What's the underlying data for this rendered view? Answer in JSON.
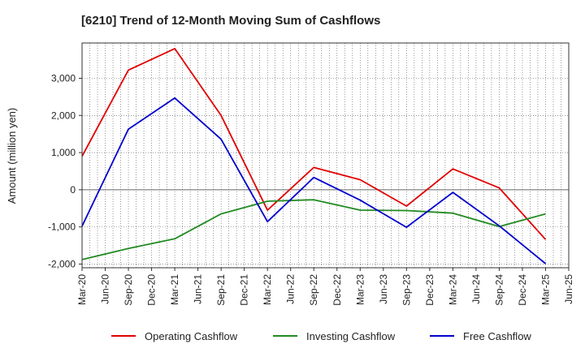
{
  "chart_data": {
    "type": "line",
    "title": "[6210]  Trend of 12-Month Moving Sum of Cashflows",
    "xlabel": "",
    "ylabel": "Amount (million yen)",
    "x_ticks": [
      "Mar-20",
      "Jun-20",
      "Sep-20",
      "Dec-20",
      "Mar-21",
      "Jun-21",
      "Sep-21",
      "Dec-21",
      "Mar-22",
      "Jun-22",
      "Sep-22",
      "Dec-22",
      "Mar-23",
      "Jun-23",
      "Sep-23",
      "Dec-23",
      "Mar-24",
      "Jun-24",
      "Sep-24",
      "Dec-24",
      "Mar-25",
      "Jun-25"
    ],
    "y_ticks": [
      -2000,
      -1000,
      0,
      1000,
      2000,
      3000
    ],
    "y_tick_labels": [
      "-2,000",
      "-1,000",
      "0",
      "1,000",
      "2,000",
      "3,000"
    ],
    "ylim": [
      -2100,
      3950
    ],
    "grid": true,
    "legend_position": "bottom",
    "series": [
      {
        "name": "Operating Cashflow",
        "color": "#e00000",
        "points": [
          {
            "x": "Mar-20",
            "y": 900
          },
          {
            "x": "Sep-20",
            "y": 3220
          },
          {
            "x": "Mar-21",
            "y": 3800
          },
          {
            "x": "Sep-21",
            "y": 2000
          },
          {
            "x": "Mar-22",
            "y": -550
          },
          {
            "x": "Sep-22",
            "y": 600
          },
          {
            "x": "Mar-23",
            "y": 270
          },
          {
            "x": "Sep-23",
            "y": -440
          },
          {
            "x": "Mar-24",
            "y": 560
          },
          {
            "x": "Sep-24",
            "y": 50
          },
          {
            "x": "Mar-25",
            "y": -1340
          }
        ]
      },
      {
        "name": "Investing Cashflow",
        "color": "#228b22",
        "points": [
          {
            "x": "Mar-20",
            "y": -1880
          },
          {
            "x": "Sep-20",
            "y": -1580
          },
          {
            "x": "Mar-21",
            "y": -1320
          },
          {
            "x": "Sep-21",
            "y": -650
          },
          {
            "x": "Mar-22",
            "y": -310
          },
          {
            "x": "Sep-22",
            "y": -270
          },
          {
            "x": "Mar-23",
            "y": -550
          },
          {
            "x": "Sep-23",
            "y": -560
          },
          {
            "x": "Mar-24",
            "y": -630
          },
          {
            "x": "Sep-24",
            "y": -990
          },
          {
            "x": "Mar-25",
            "y": -650
          }
        ]
      },
      {
        "name": "Free Cashflow",
        "color": "#0000cc",
        "points": [
          {
            "x": "Mar-20",
            "y": -980
          },
          {
            "x": "Sep-20",
            "y": 1630
          },
          {
            "x": "Mar-21",
            "y": 2470
          },
          {
            "x": "Sep-21",
            "y": 1360
          },
          {
            "x": "Mar-22",
            "y": -860
          },
          {
            "x": "Sep-22",
            "y": 330
          },
          {
            "x": "Mar-23",
            "y": -280
          },
          {
            "x": "Sep-23",
            "y": -1010
          },
          {
            "x": "Mar-24",
            "y": -70
          },
          {
            "x": "Sep-24",
            "y": -970
          },
          {
            "x": "Mar-25",
            "y": -1990
          }
        ]
      }
    ]
  }
}
